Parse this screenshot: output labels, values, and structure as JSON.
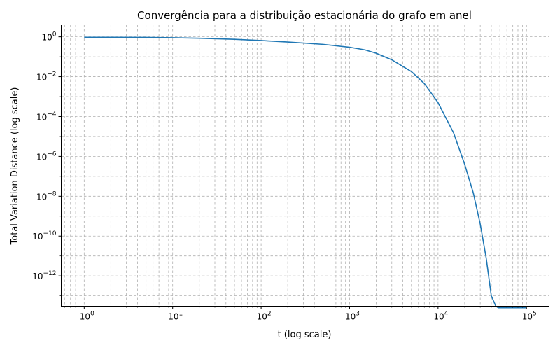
{
  "chart_data": {
    "type": "line",
    "title": "Convergência para a distribuição estacionária do grafo em anel",
    "xlabel": "t (log scale)",
    "ylabel": "Total Variation Distance (log scale)",
    "xscale": "log",
    "yscale": "log",
    "xlim": [
      0.55,
      180000
    ],
    "ylim": [
      3e-14,
      4
    ],
    "grid": true,
    "grid_which": "both",
    "x_ticks": [
      {
        "value": 1,
        "base": "10",
        "exp": "0"
      },
      {
        "value": 10,
        "base": "10",
        "exp": "1"
      },
      {
        "value": 100,
        "base": "10",
        "exp": "2"
      },
      {
        "value": 1000,
        "base": "10",
        "exp": "3"
      },
      {
        "value": 10000,
        "base": "10",
        "exp": "4"
      },
      {
        "value": 100000,
        "base": "10",
        "exp": "5"
      }
    ],
    "y_ticks": [
      {
        "value": 1,
        "base": "10",
        "exp": "0"
      },
      {
        "value": 0.01,
        "base": "10",
        "exp": "−2"
      },
      {
        "value": 0.0001,
        "base": "10",
        "exp": "−4"
      },
      {
        "value": 1e-06,
        "base": "10",
        "exp": "−6"
      },
      {
        "value": 1e-08,
        "base": "10",
        "exp": "−8"
      },
      {
        "value": 1e-10,
        "base": "10",
        "exp": "−10"
      },
      {
        "value": 1e-12,
        "base": "10",
        "exp": "−12"
      }
    ],
    "color": "#1f77b4",
    "series": [
      {
        "x": [
          1,
          2,
          5,
          10,
          20,
          50,
          100,
          200,
          500,
          1000,
          1500,
          2000,
          3000,
          5000,
          7000,
          10000,
          15000,
          20000,
          25000,
          30000,
          35000,
          40000,
          45000,
          48000,
          55000,
          70000,
          100000
        ],
        "y": [
          0.95,
          0.945,
          0.935,
          0.9,
          0.85,
          0.75,
          0.65,
          0.55,
          0.42,
          0.3,
          0.22,
          0.15,
          0.07,
          0.018,
          0.0045,
          0.0005,
          1.5e-05,
          4e-07,
          1.5e-08,
          4e-10,
          8e-12,
          1e-13,
          3e-14,
          2.5e-14,
          2.5e-14,
          2.5e-14,
          2.5e-14
        ]
      }
    ]
  }
}
